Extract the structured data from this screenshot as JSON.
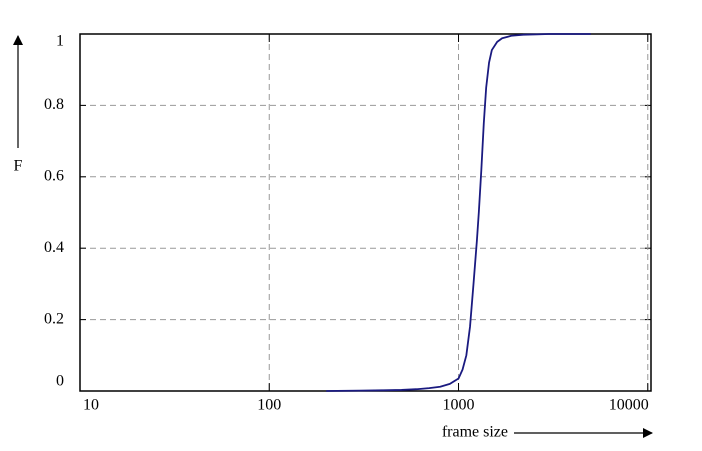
{
  "chart_data": {
    "type": "line",
    "xlabel": "frame size",
    "ylabel": "F",
    "x": [
      200,
      300,
      400,
      500,
      600,
      700,
      800,
      900,
      1000,
      1050,
      1100,
      1150,
      1200,
      1250,
      1280,
      1320,
      1360,
      1400,
      1450,
      1500,
      1600,
      1700,
      1900,
      2200,
      2600,
      3000,
      4000,
      5000
    ],
    "series": [
      {
        "color": "#1a1a80",
        "values": [
          0,
          0.001,
          0.002,
          0.003,
          0.005,
          0.008,
          0.012,
          0.02,
          0.035,
          0.06,
          0.1,
          0.18,
          0.3,
          0.42,
          0.5,
          0.62,
          0.75,
          0.85,
          0.92,
          0.955,
          0.978,
          0.988,
          0.995,
          0.998,
          0.999,
          1,
          1,
          1
        ]
      }
    ],
    "xscale": "log",
    "xlim": [
      10,
      10400
    ],
    "xticks": [
      10,
      100,
      1000,
      10000
    ],
    "ylim": [
      0,
      1
    ],
    "yticks": [
      0,
      0.2,
      0.4,
      0.6,
      0.8,
      1
    ],
    "grid": true
  }
}
